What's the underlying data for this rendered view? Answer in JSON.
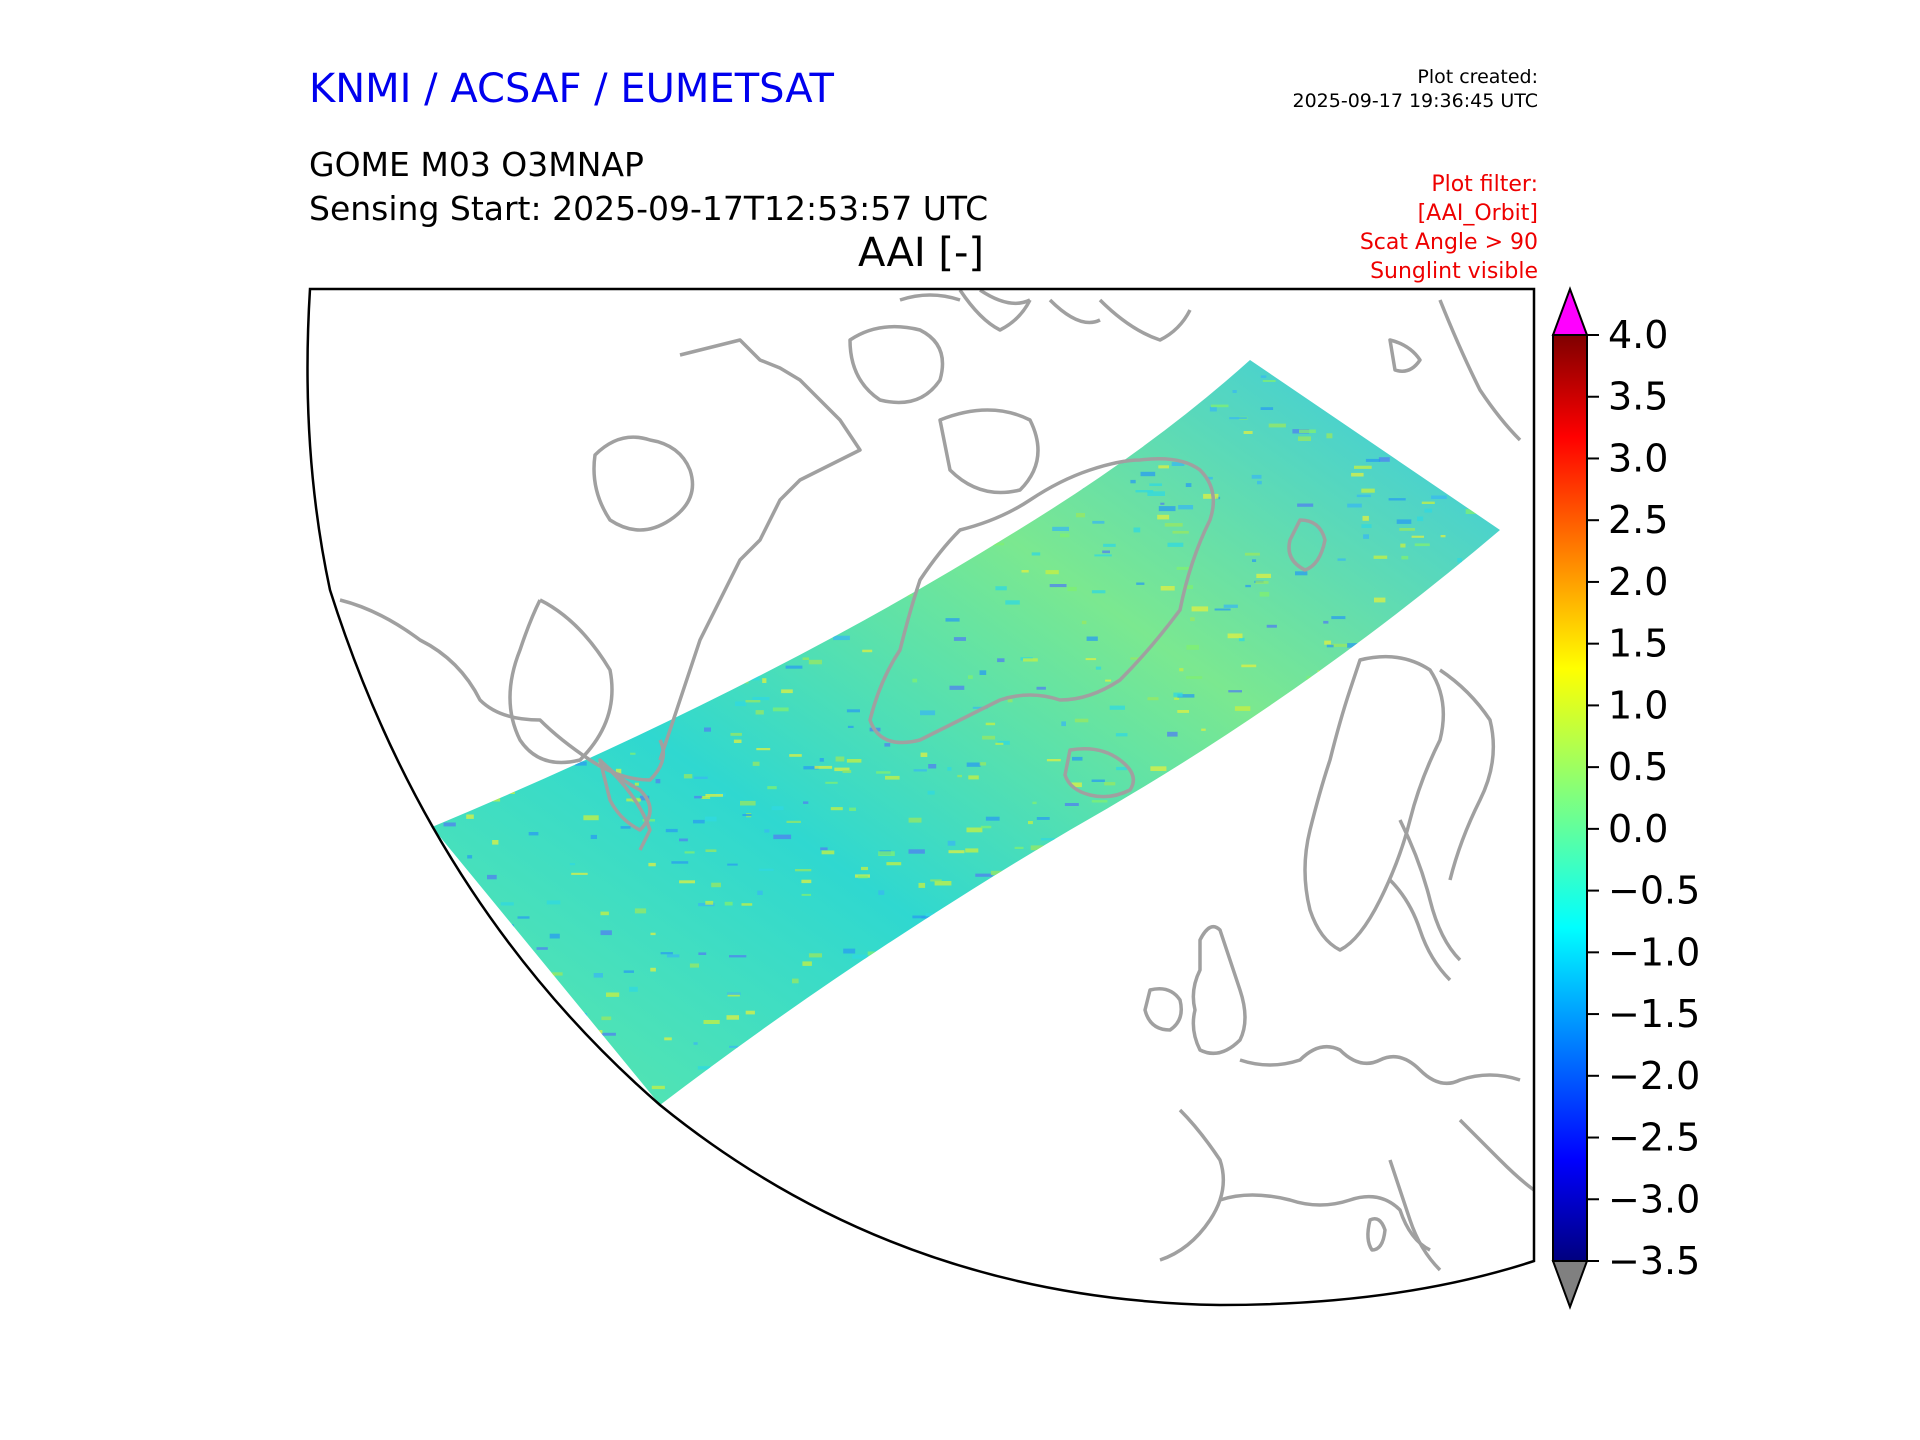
{
  "header": {
    "agency": "KNMI / ACSAF / EUMETSAT",
    "created_label": "Plot created:",
    "created_time": "2025-09-17 19:36:45 UTC",
    "product": "GOME M03 O3MNAP",
    "sensing_start": "Sensing Start: 2025-09-17T12:53:57 UTC",
    "variable_title": "AAI [-]"
  },
  "filter": {
    "lines": [
      "Plot filter:",
      "[AAI_Orbit]",
      "Scat Angle > 90",
      "Sunglint visible"
    ]
  },
  "colorbar": {
    "ticks": [
      "4.0",
      "3.5",
      "3.0",
      "2.5",
      "2.0",
      "1.5",
      "1.0",
      "0.5",
      "0.0",
      "−0.5",
      "−1.0",
      "−1.5",
      "−2.0",
      "−2.5",
      "−3.0",
      "−3.5"
    ],
    "min": -3.5,
    "max": 4.0,
    "over_color": "#ff00ff",
    "under_color": "#808080",
    "colormap": "jet"
  },
  "colors": {
    "coastline": "#a0a0a0",
    "swath_base": "#40e8b0"
  }
}
